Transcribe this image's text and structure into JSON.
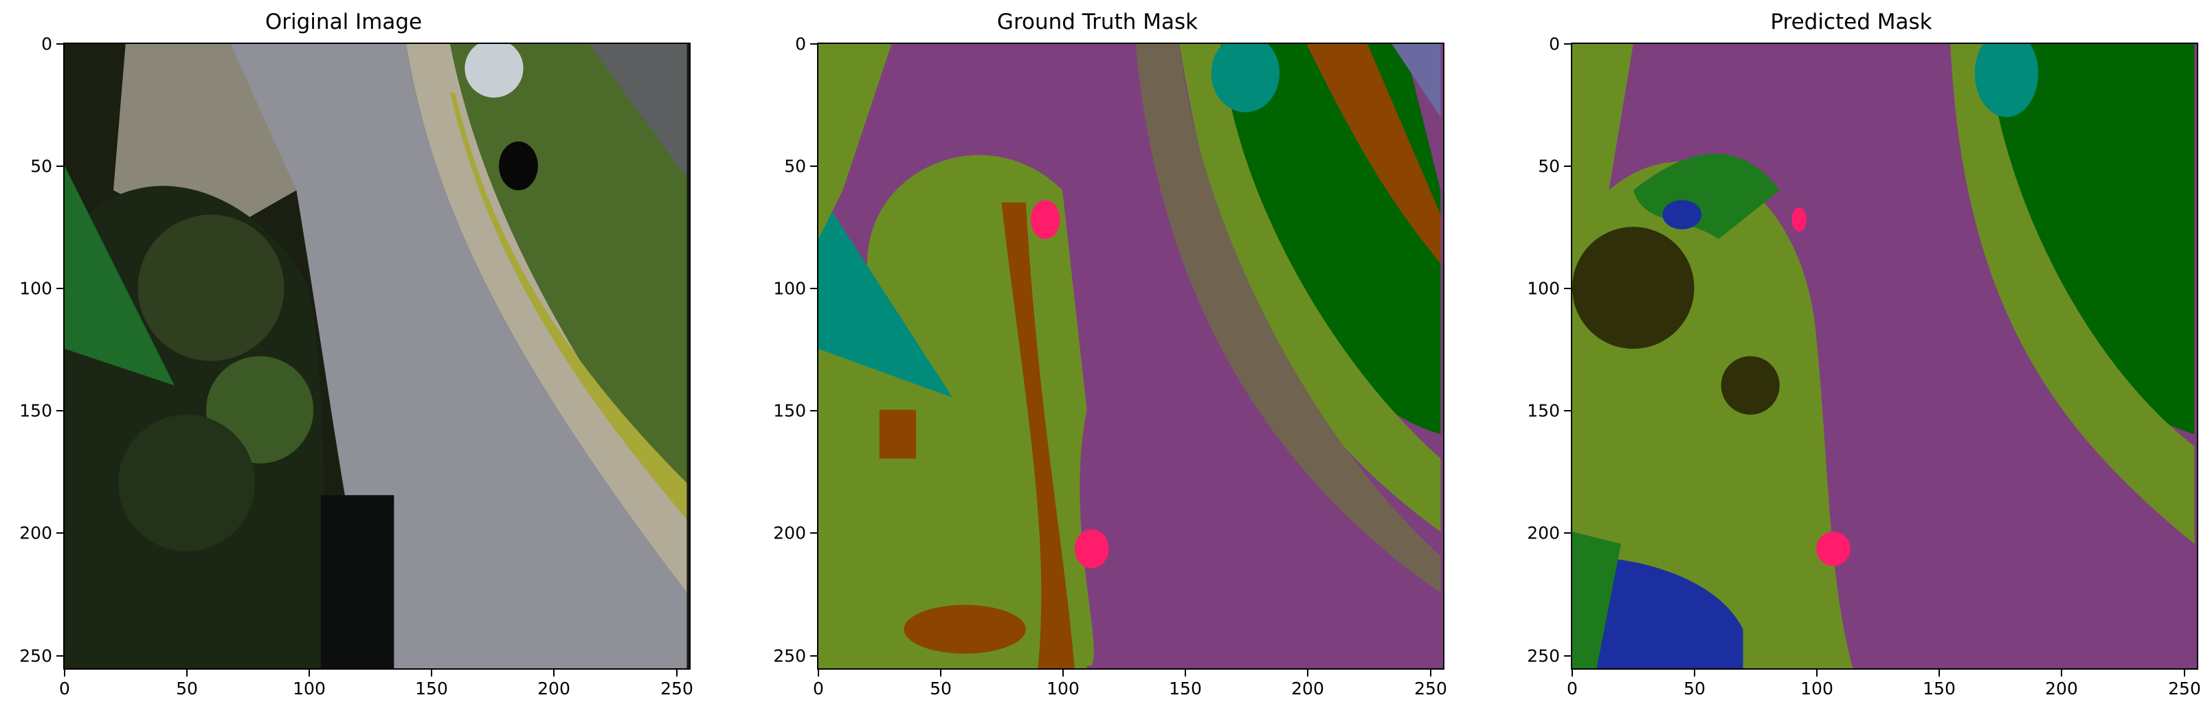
{
  "panels": [
    {
      "title": "Original Image"
    },
    {
      "title": "Ground Truth Mask"
    },
    {
      "title": "Predicted Mask"
    }
  ],
  "axis": {
    "x_ticks": [
      "0",
      "50",
      "100",
      "150",
      "200",
      "250"
    ],
    "y_ticks": [
      "0",
      "50",
      "100",
      "150",
      "200",
      "250"
    ],
    "x_values": [
      0,
      50,
      100,
      150,
      200,
      250
    ],
    "y_values": [
      0,
      50,
      100,
      150,
      200,
      250
    ],
    "range": [
      0,
      255
    ]
  },
  "colors": {
    "road": "#7e3f7e",
    "grass": "#6b8e23",
    "tree": "#006400",
    "gravel": "#706450",
    "soil": "#8b4500",
    "water_teal": "#008b7a",
    "person": "#ff1c6b",
    "dark_veg": "#2f2f0a",
    "blue": "#1c2fa0",
    "slate": "#6a6aa0"
  }
}
